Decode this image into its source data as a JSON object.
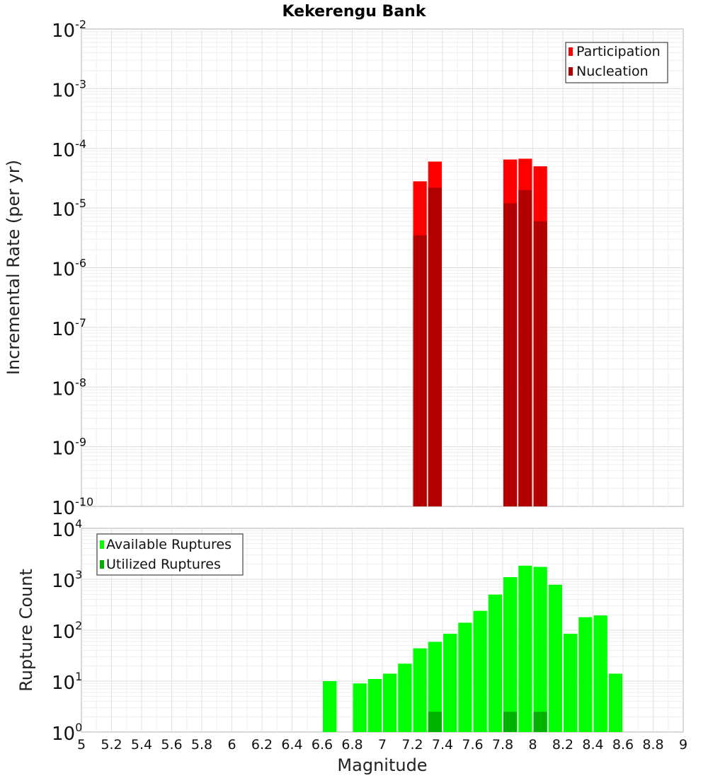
{
  "chart_data": {
    "type": "bar",
    "title": "Kekerengu Bank",
    "xlabel": "Magnitude",
    "xlim": [
      5,
      9
    ],
    "x_ticks": [
      "5",
      "5.2",
      "5.4",
      "5.6",
      "5.8",
      "6",
      "6.2",
      "6.4",
      "6.6",
      "6.8",
      "7",
      "7.2",
      "7.4",
      "7.6",
      "7.8",
      "8",
      "8.2",
      "8.4",
      "8.6",
      "8.8",
      "9"
    ],
    "panels": [
      {
        "ylabel": "Incremental Rate (per yr)",
        "yscale": "log",
        "ylim_exp": [
          -10,
          -2
        ],
        "legend_position": "top-right",
        "series": [
          {
            "name": "Participation",
            "color": "#ff0000",
            "x": [
              7.25,
              7.35,
              7.85,
              7.95,
              8.05
            ],
            "values": [
              2.8e-05,
              6e-05,
              6.5e-05,
              6.7e-05,
              5e-05
            ]
          },
          {
            "name": "Nucleation",
            "color": "#b20000",
            "x": [
              7.25,
              7.35,
              7.85,
              7.95,
              8.05
            ],
            "values": [
              3.5e-06,
              2.2e-05,
              1.2e-05,
              2e-05,
              6e-06
            ]
          }
        ]
      },
      {
        "ylabel": "Rupture Count",
        "yscale": "log",
        "ylim_exp": [
          0,
          4
        ],
        "legend_position": "top-left",
        "series": [
          {
            "name": "Available Ruptures",
            "color": "#00ff00",
            "x": [
              6.65,
              6.85,
              6.95,
              7.05,
              7.15,
              7.25,
              7.35,
              7.45,
              7.55,
              7.65,
              7.75,
              7.85,
              7.95,
              8.05,
              8.15,
              8.25,
              8.35,
              8.45,
              8.55
            ],
            "values": [
              10,
              9,
              11,
              14,
              22,
              44,
              59,
              85,
              140,
              240,
              500,
              1100,
              1850,
              1750,
              780,
              85,
              180,
              195,
              14
            ]
          },
          {
            "name": "Utilized Ruptures",
            "color": "#00b200",
            "x": [
              7.25,
              7.35,
              7.85,
              7.95,
              8.05
            ],
            "values": [
              1,
              2.5,
              2.5,
              1,
              2.5
            ]
          }
        ]
      }
    ]
  }
}
